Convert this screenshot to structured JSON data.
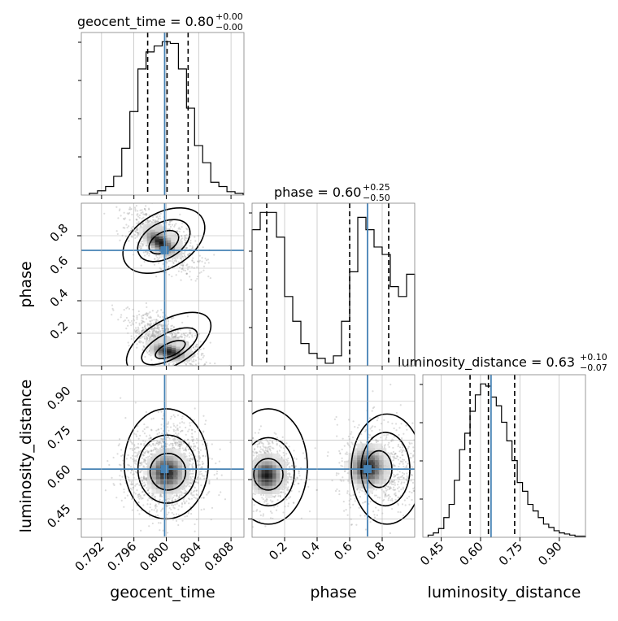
{
  "figure": {
    "titles": {
      "geocent_time": {
        "base": "geocent_time = 0.80",
        "sup": "+0.00",
        "sub": "−0.00"
      },
      "phase": {
        "base": "phase = 0.60",
        "sup": "+0.25",
        "sub": "−0.50"
      },
      "luminosity_distance": {
        "base": "luminosity_distance = 0.63",
        "sup": "+0.10",
        "sub": "−0.07"
      }
    },
    "axis_labels": {
      "geocent_time": "geocent_time",
      "phase": "phase",
      "luminosity_distance": "luminosity_distance"
    },
    "ticks": {
      "geocent_time": [
        "0.792",
        "0.796",
        "0.800",
        "0.804",
        "0.808"
      ],
      "phase": [
        "0.2",
        "0.4",
        "0.6",
        "0.8"
      ],
      "luminosity_distance": [
        "0.45",
        "0.60",
        "0.75",
        "0.90"
      ]
    },
    "colors": {
      "truth": "#4682b4",
      "hist": "#000000",
      "grid": "#b0b0b0",
      "scatter": "#9a9a9a"
    }
  },
  "chart_data": {
    "type": "corner",
    "parameters": [
      "geocent_time",
      "phase",
      "luminosity_distance"
    ],
    "ranges": {
      "geocent_time": [
        0.7895,
        0.8096
      ],
      "phase": [
        0.0,
        1.0
      ],
      "luminosity_distance": [
        0.38,
        1.0
      ]
    },
    "truths": {
      "geocent_time": 0.7998,
      "phase": 0.71,
      "luminosity_distance": 0.64
    },
    "quantiles": {
      "geocent_time": [
        0.7977,
        0.8001,
        0.8027
      ],
      "phase": [
        0.09,
        0.6,
        0.84
      ],
      "luminosity_distance": [
        0.56,
        0.63,
        0.73
      ]
    },
    "grid": true,
    "histograms": {
      "geocent_time": {
        "edges": [
          0.7905,
          0.7915,
          0.7925,
          0.7935,
          0.7945,
          0.7955,
          0.7965,
          0.7975,
          0.7985,
          0.7995,
          0.8005,
          0.8015,
          0.8025,
          0.8035,
          0.8045,
          0.8055,
          0.8065,
          0.8075,
          0.8085,
          0.8095
        ],
        "counts": [
          2,
          5,
          10,
          22,
          55,
          98,
          148,
          168,
          175,
          180,
          178,
          148,
          102,
          58,
          38,
          15,
          10,
          4,
          2
        ]
      },
      "phase": {
        "edges": [
          0.0,
          0.05,
          0.1,
          0.15,
          0.2,
          0.25,
          0.3,
          0.35,
          0.4,
          0.45,
          0.5,
          0.55,
          0.6,
          0.65,
          0.7,
          0.75,
          0.8,
          0.85,
          0.9,
          0.95,
          1.0
        ],
        "counts": [
          55,
          62,
          62,
          52,
          28,
          18,
          9,
          5,
          3,
          1,
          4,
          18,
          38,
          60,
          55,
          48,
          45,
          32,
          28,
          37
        ]
      },
      "luminosity_distance": {
        "edges": [
          0.4,
          0.42,
          0.44,
          0.46,
          0.48,
          0.5,
          0.52,
          0.54,
          0.56,
          0.58,
          0.6,
          0.62,
          0.64,
          0.66,
          0.68,
          0.7,
          0.72,
          0.74,
          0.76,
          0.78,
          0.8,
          0.82,
          0.84,
          0.86,
          0.88,
          0.9,
          0.92,
          0.94,
          0.96,
          0.98,
          1.0
        ],
        "counts": [
          2,
          4,
          8,
          18,
          30,
          52,
          80,
          95,
          115,
          130,
          140,
          138,
          128,
          120,
          105,
          88,
          70,
          50,
          42,
          30,
          24,
          18,
          12,
          9,
          6,
          4,
          3,
          2,
          1,
          1
        ]
      }
    },
    "pairs": [
      {
        "x": "geocent_time",
        "y": "phase",
        "modes": [
          {
            "cx": 0.7995,
            "cy": 0.77,
            "sx": 0.0022,
            "sy": 0.09,
            "rho": -0.6,
            "n": 900
          },
          {
            "cx": 0.8,
            "cy": 0.15,
            "sx": 0.0022,
            "sy": 0.08,
            "rho": -0.6,
            "n": 900
          }
        ],
        "dense_blobs": [
          {
            "cx": 0.7995,
            "cy": 0.77,
            "sx": 0.0011,
            "sy": 0.045,
            "rho": -0.6
          },
          {
            "cx": 0.8005,
            "cy": 0.1,
            "sx": 0.0012,
            "sy": 0.03,
            "rho": -0.4
          }
        ],
        "contours": [
          {
            "cx": 0.7997,
            "cy": 0.77,
            "rx": 0.0055,
            "ry": 0.17,
            "rot": -30
          },
          {
            "cx": 0.7997,
            "cy": 0.77,
            "rx": 0.0035,
            "ry": 0.11,
            "rot": -30
          },
          {
            "cx": 0.7997,
            "cy": 0.76,
            "rx": 0.002,
            "ry": 0.06,
            "rot": -30
          },
          {
            "cx": 0.8003,
            "cy": 0.14,
            "rx": 0.0058,
            "ry": 0.14,
            "rot": -30
          },
          {
            "cx": 0.8004,
            "cy": 0.12,
            "rx": 0.0038,
            "ry": 0.08,
            "rot": -28
          },
          {
            "cx": 0.8005,
            "cy": 0.1,
            "rx": 0.002,
            "ry": 0.04,
            "rot": -25
          }
        ]
      },
      {
        "x": "geocent_time",
        "y": "luminosity_distance",
        "modes": [
          {
            "cx": 0.8,
            "cy": 0.64,
            "sx": 0.0024,
            "sy": 0.085,
            "rho": 0.0,
            "n": 1500
          }
        ],
        "dense_blobs": [
          {
            "cx": 0.8002,
            "cy": 0.63,
            "sx": 0.0012,
            "sy": 0.04,
            "rho": 0.0
          }
        ],
        "contours": [
          {
            "cx": 0.8,
            "cy": 0.66,
            "rx": 0.0052,
            "ry": 0.21,
            "rot": 0
          },
          {
            "cx": 0.8001,
            "cy": 0.64,
            "rx": 0.0036,
            "ry": 0.13,
            "rot": 0
          },
          {
            "cx": 0.8002,
            "cy": 0.63,
            "rx": 0.0022,
            "ry": 0.07,
            "rot": 0
          }
        ]
      },
      {
        "x": "phase",
        "y": "luminosity_distance",
        "modes": [
          {
            "cx": 0.1,
            "cy": 0.63,
            "sx": 0.09,
            "sy": 0.07,
            "rho": 0.0,
            "n": 700
          },
          {
            "cx": 0.8,
            "cy": 0.64,
            "sx": 0.14,
            "sy": 0.09,
            "rho": 0.0,
            "n": 700
          }
        ],
        "dense_blobs": [
          {
            "cx": 0.1,
            "cy": 0.62,
            "sx": 0.05,
            "sy": 0.035,
            "rho": 0.0
          },
          {
            "cx": 0.72,
            "cy": 0.65,
            "sx": 0.06,
            "sy": 0.04,
            "rho": 0.0
          }
        ],
        "contours": [
          {
            "cx": 0.1,
            "cy": 0.65,
            "rx": 0.24,
            "ry": 0.22,
            "rot": 0
          },
          {
            "cx": 0.1,
            "cy": 0.63,
            "rx": 0.16,
            "ry": 0.13,
            "rot": 0
          },
          {
            "cx": 0.1,
            "cy": 0.62,
            "rx": 0.09,
            "ry": 0.06,
            "rot": 0
          },
          {
            "cx": 0.83,
            "cy": 0.64,
            "rx": 0.22,
            "ry": 0.21,
            "rot": 0
          },
          {
            "cx": 0.82,
            "cy": 0.64,
            "rx": 0.15,
            "ry": 0.14,
            "rot": 0
          },
          {
            "cx": 0.78,
            "cy": 0.64,
            "rx": 0.08,
            "ry": 0.07,
            "rot": 0
          }
        ]
      }
    ]
  }
}
